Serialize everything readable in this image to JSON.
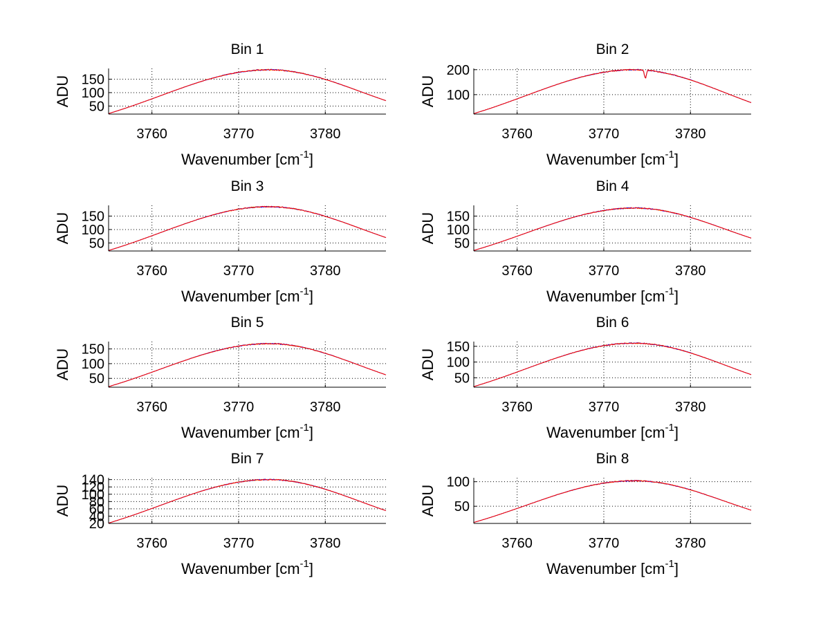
{
  "figure": {
    "background": "#ffffff"
  },
  "style": {
    "series_colors": [
      "#ff0000",
      "#0000ff",
      "#ffcc00"
    ],
    "grid_color": "#000000"
  },
  "chart_data": [
    {
      "type": "line",
      "title": "Bin 1",
      "xlabel": "Wavenumber [cm",
      "xlabel_sup": "-1",
      "xlabel_end": "]",
      "ylabel": "ADU",
      "xlim": [
        3755,
        3787
      ],
      "ylim": [
        20,
        190
      ],
      "xticks": [
        3760,
        3770,
        3780
      ],
      "yticks": [
        50,
        100,
        150
      ],
      "grid": true,
      "peak": 185,
      "peak_x": 3773.5,
      "left_value": 22,
      "right_value": 70,
      "dips": []
    },
    {
      "type": "line",
      "title": "Bin 2",
      "xlabel": "Wavenumber [cm",
      "xlabel_sup": "-1",
      "xlabel_end": "]",
      "ylabel": "ADU",
      "xlim": [
        3755,
        3787
      ],
      "ylim": [
        22,
        205
      ],
      "xticks": [
        3760,
        3770,
        3780
      ],
      "yticks": [
        100,
        200
      ],
      "grid": true,
      "peak": 200,
      "peak_x": 3773.5,
      "left_value": 24,
      "right_value": 68,
      "dips": [
        {
          "x": 3774.8,
          "depth": 35
        }
      ]
    },
    {
      "type": "line",
      "title": "Bin 3",
      "xlabel": "Wavenumber [cm",
      "xlabel_sup": "-1",
      "xlabel_end": "]",
      "ylabel": "ADU",
      "xlim": [
        3755,
        3787
      ],
      "ylim": [
        20,
        190
      ],
      "xticks": [
        3760,
        3770,
        3780
      ],
      "yticks": [
        50,
        100,
        150
      ],
      "grid": true,
      "peak": 185,
      "peak_x": 3773.5,
      "left_value": 22,
      "right_value": 70,
      "dips": []
    },
    {
      "type": "line",
      "title": "Bin 4",
      "xlabel": "Wavenumber [cm",
      "xlabel_sup": "-1",
      "xlabel_end": "]",
      "ylabel": "ADU",
      "xlim": [
        3755,
        3787
      ],
      "ylim": [
        20,
        190
      ],
      "xticks": [
        3760,
        3770,
        3780
      ],
      "yticks": [
        50,
        100,
        150
      ],
      "grid": true,
      "peak": 180,
      "peak_x": 3773.5,
      "left_value": 22,
      "right_value": 68,
      "dips": []
    },
    {
      "type": "line",
      "title": "Bin 5",
      "xlabel": "Wavenumber [cm",
      "xlabel_sup": "-1",
      "xlabel_end": "]",
      "ylabel": "ADU",
      "xlim": [
        3755,
        3787
      ],
      "ylim": [
        20,
        175
      ],
      "xticks": [
        3760,
        3770,
        3780
      ],
      "yticks": [
        50,
        100,
        150
      ],
      "grid": true,
      "peak": 168,
      "peak_x": 3773.5,
      "left_value": 22,
      "right_value": 62,
      "dips": []
    },
    {
      "type": "line",
      "title": "Bin 6",
      "xlabel": "Wavenumber [cm",
      "xlabel_sup": "-1",
      "xlabel_end": "]",
      "ylabel": "ADU",
      "xlim": [
        3755,
        3787
      ],
      "ylim": [
        20,
        165
      ],
      "xticks": [
        3760,
        3770,
        3780
      ],
      "yticks": [
        50,
        100,
        150
      ],
      "grid": true,
      "peak": 160,
      "peak_x": 3773.5,
      "left_value": 22,
      "right_value": 60,
      "dips": []
    },
    {
      "type": "line",
      "title": "Bin 7",
      "xlabel": "Wavenumber [cm",
      "xlabel_sup": "-1",
      "xlabel_end": "]",
      "ylabel": "ADU",
      "xlim": [
        3755,
        3787
      ],
      "ylim": [
        20,
        145
      ],
      "xticks": [
        3760,
        3770,
        3780
      ],
      "yticks": [
        20,
        40,
        60,
        80,
        100,
        120,
        140
      ],
      "grid": true,
      "peak": 140,
      "peak_x": 3773.5,
      "left_value": 21,
      "right_value": 55,
      "dips": []
    },
    {
      "type": "line",
      "title": "Bin 8",
      "xlabel": "Wavenumber [cm",
      "xlabel_sup": "-1",
      "xlabel_end": "]",
      "ylabel": "ADU",
      "xlim": [
        3755,
        3787
      ],
      "ylim": [
        15,
        108
      ],
      "xticks": [
        3760,
        3770,
        3780
      ],
      "yticks": [
        50,
        100
      ],
      "grid": true,
      "peak": 102,
      "peak_x": 3773.5,
      "left_value": 17,
      "right_value": 42,
      "dips": []
    }
  ]
}
